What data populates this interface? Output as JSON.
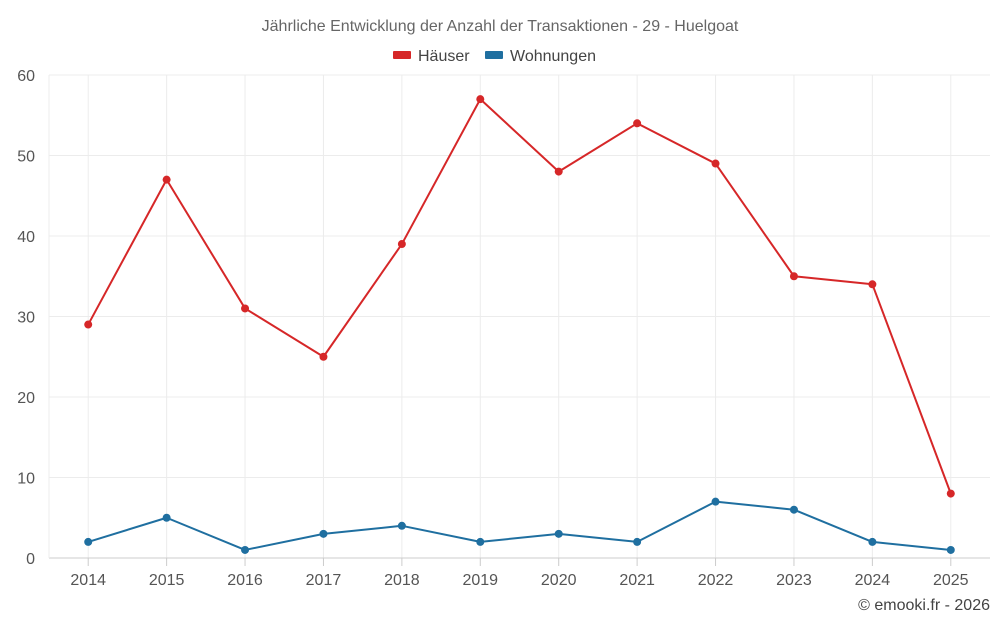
{
  "chart_data": {
    "type": "line",
    "title": "Jährliche Entwicklung der Anzahl der Transaktionen - 29 - Huelgoat",
    "xlabel": "",
    "ylabel": "",
    "categories": [
      "2014",
      "2015",
      "2016",
      "2017",
      "2018",
      "2019",
      "2020",
      "2021",
      "2022",
      "2023",
      "2024",
      "2025"
    ],
    "ylim": [
      0,
      60
    ],
    "yticks": [
      "0",
      "10",
      "20",
      "30",
      "40",
      "50",
      "60"
    ],
    "grid": true,
    "legend_position": "top-center",
    "series": [
      {
        "name": "Häuser",
        "color": "#d62728",
        "values": [
          29,
          47,
          31,
          25,
          39,
          57,
          48,
          54,
          49,
          35,
          34,
          8
        ]
      },
      {
        "name": "Wohnungen",
        "color": "#1f6fa0",
        "values": [
          2,
          5,
          1,
          3,
          4,
          2,
          3,
          2,
          7,
          6,
          2,
          1
        ]
      }
    ],
    "credit": "© emooki.fr - 2026"
  }
}
